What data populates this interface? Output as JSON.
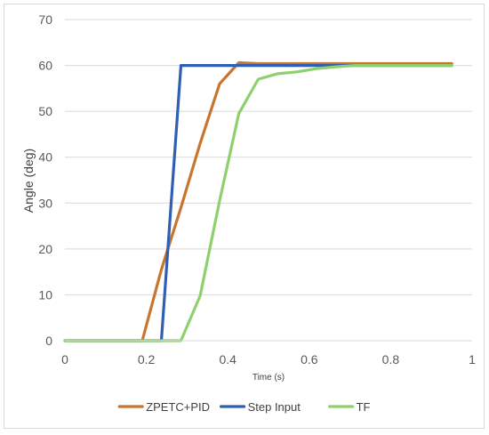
{
  "chart_data": {
    "type": "line",
    "title": "",
    "xlabel": "Time (s)",
    "ylabel": "Angle (deg)",
    "xlim": [
      0,
      1
    ],
    "ylim": [
      0,
      70
    ],
    "x_ticks": [
      0,
      0.2,
      0.4,
      0.6,
      0.8,
      1
    ],
    "x_tick_labels": [
      "0",
      "0.2",
      "0.4",
      "0.6",
      "0.8",
      "1"
    ],
    "y_ticks": [
      0,
      10,
      20,
      30,
      40,
      50,
      60,
      70
    ],
    "y_tick_labels": [
      "0",
      "10",
      "20",
      "30",
      "40",
      "50",
      "60",
      "70"
    ],
    "grid": "horizontal",
    "legend_position": "bottom",
    "series": [
      {
        "name": "ZPETC+PID",
        "color": "#c8752d",
        "x": [
          0,
          0.19,
          0.237,
          0.285,
          0.332,
          0.38,
          0.427,
          0.475,
          0.522,
          0.57,
          0.617,
          0.665,
          0.712,
          0.76,
          0.807,
          0.855,
          0.902,
          0.95
        ],
        "y": [
          0,
          0,
          15.5,
          29,
          43,
          56,
          60.6,
          60.4,
          60.4,
          60.4,
          60.4,
          60.4,
          60.4,
          60.4,
          60.4,
          60.4,
          60.4,
          60.4
        ]
      },
      {
        "name": "Step Input",
        "color": "#2e5fb4",
        "x": [
          0,
          0.237,
          0.285,
          0.95
        ],
        "y": [
          0,
          0,
          60,
          60
        ]
      },
      {
        "name": "TF",
        "color": "#8fd06e",
        "x": [
          0,
          0.285,
          0.332,
          0.38,
          0.427,
          0.475,
          0.522,
          0.57,
          0.617,
          0.665,
          0.712,
          0.76,
          0.807,
          0.855,
          0.902,
          0.95
        ],
        "y": [
          0,
          0,
          9.8,
          30.5,
          49.5,
          57,
          58.2,
          58.6,
          59.3,
          59.7,
          60,
          60,
          60,
          60,
          60,
          60
        ]
      }
    ]
  }
}
